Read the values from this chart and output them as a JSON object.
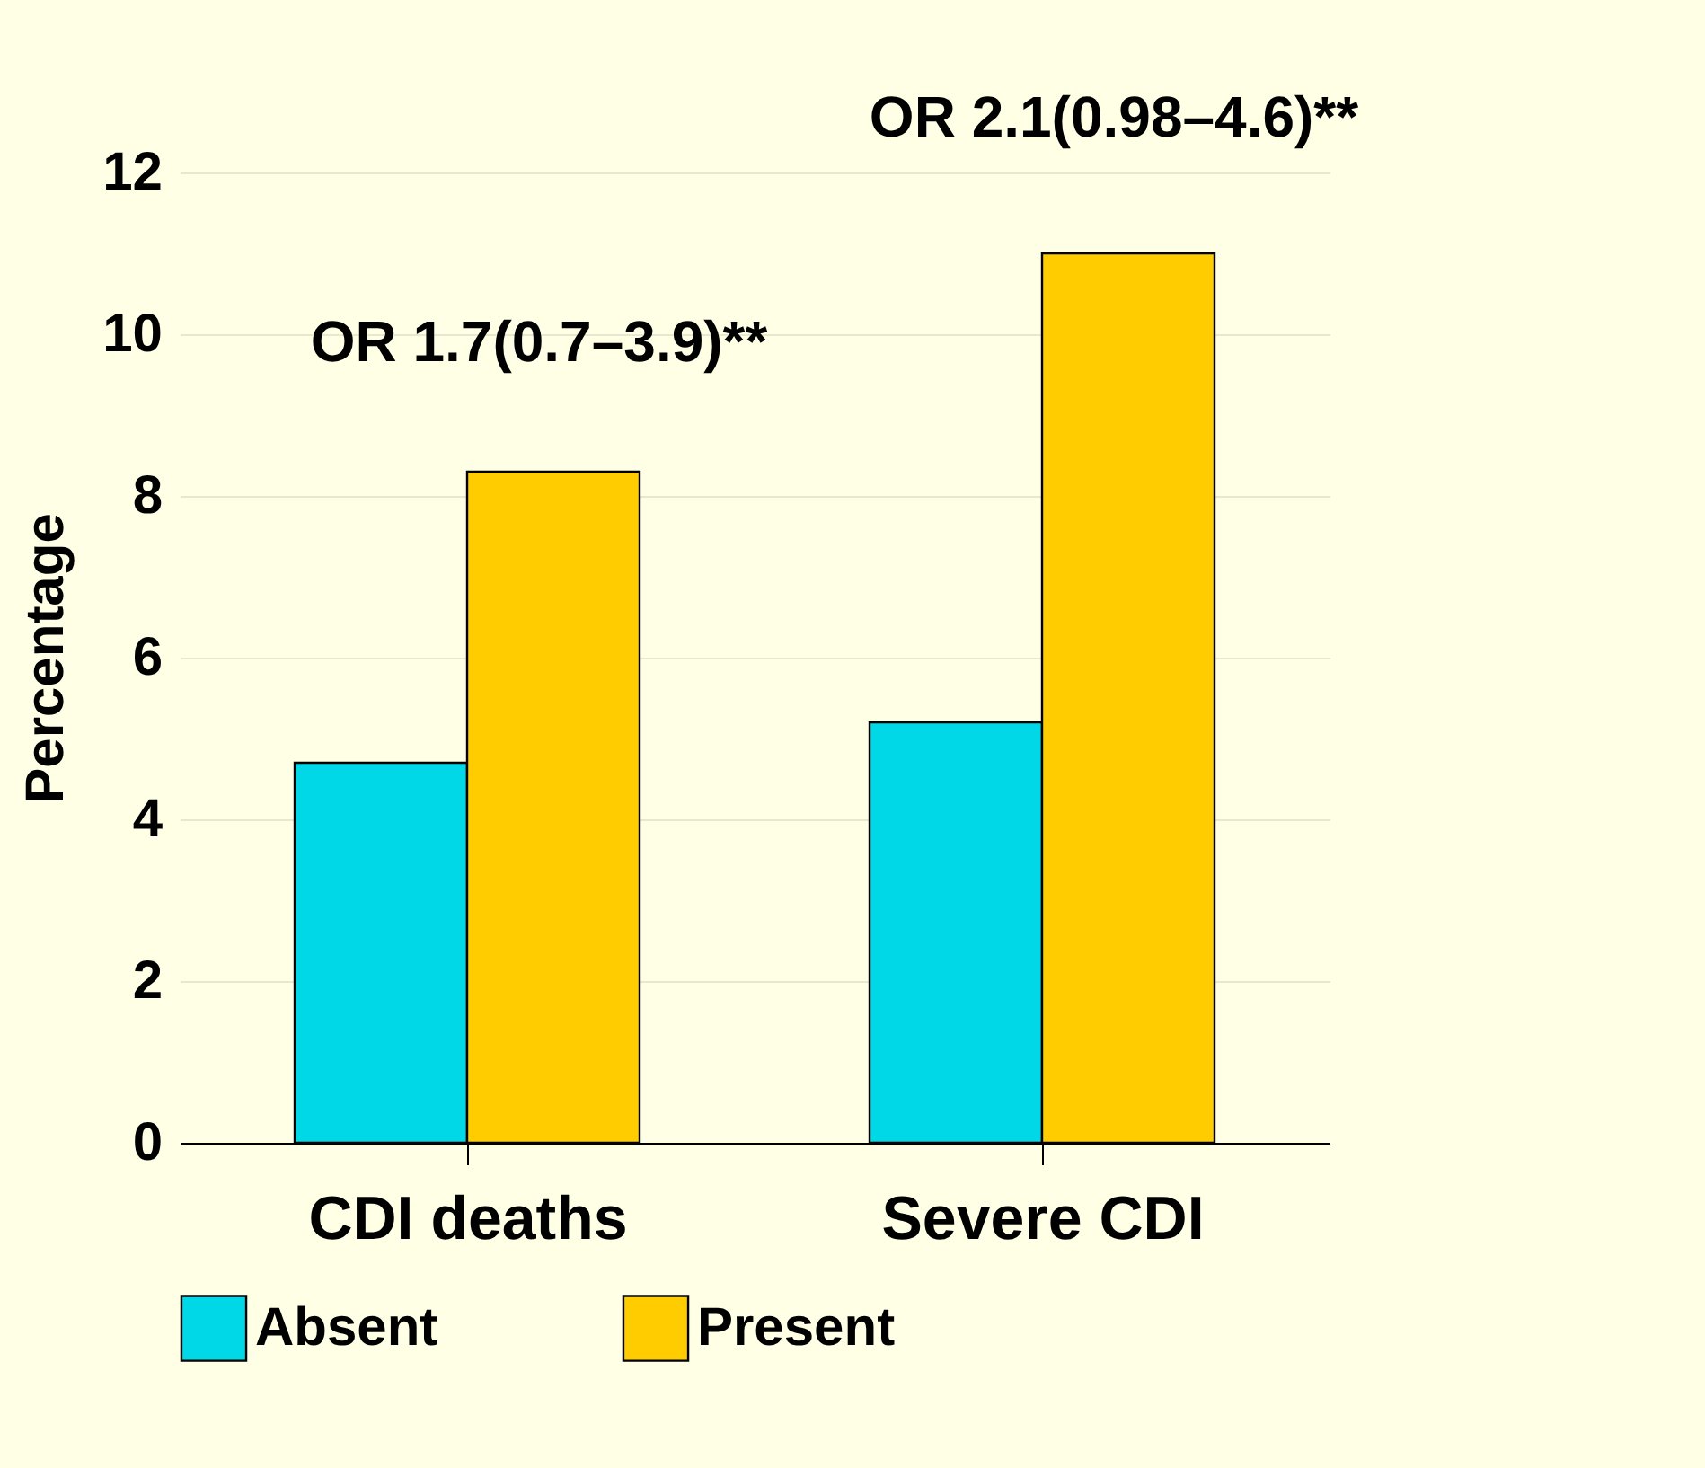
{
  "chart_data": {
    "type": "bar",
    "ylabel": "Percentage",
    "categories": [
      "CDI deaths",
      "Severe CDI"
    ],
    "series": [
      {
        "name": "Absent",
        "color": "#00d8e8",
        "values": [
          4.7,
          5.2
        ]
      },
      {
        "name": "Present",
        "color": "#ffcc00",
        "values": [
          8.3,
          11.0
        ]
      }
    ],
    "ylim": [
      0,
      12
    ],
    "yticks": [
      0,
      2,
      4,
      6,
      8,
      10,
      12
    ],
    "grid": "y",
    "legend": "bottom",
    "annotations": [
      "OR 1.7(0.7–3.9)**",
      "OR 2.1(0.98–4.6)**"
    ]
  }
}
